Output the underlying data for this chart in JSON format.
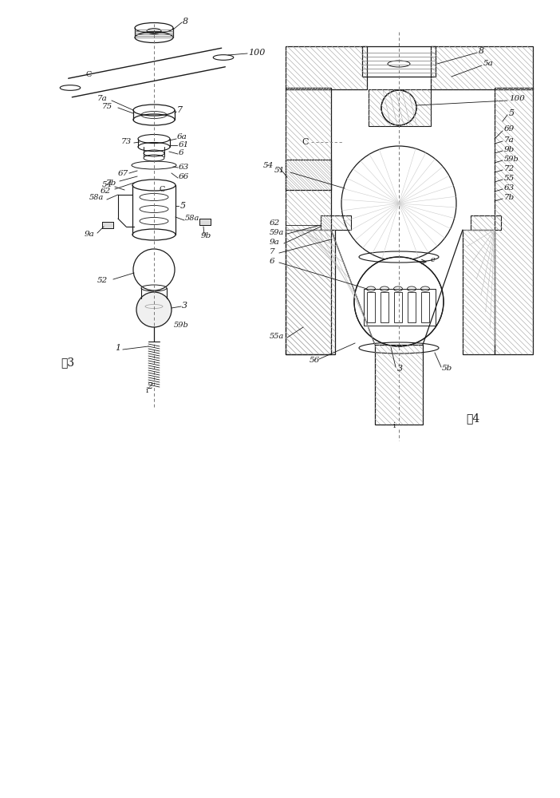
{
  "bg_color": "#ffffff",
  "line_color": "#1a1a1a",
  "fig3_label": "图3",
  "fig4_label": "图4",
  "labels": {
    "8": "8",
    "C": "C",
    "100": "100",
    "75": "75",
    "7a": "7a",
    "7": "7",
    "6a": "6a",
    "73": "73",
    "61": "61",
    "6": "6",
    "7b": "7b",
    "67": "67",
    "62": "62",
    "63": "63",
    "66": "66",
    "54": "54",
    "58a": "58a",
    "5": "5",
    "9a": "9a",
    "9b": "9b",
    "52": "52",
    "3": "3",
    "59b": "59b",
    "1": "1",
    "2": "2",
    "5a": "5a",
    "51": "51",
    "59a": "59a",
    "55a": "55a",
    "56": "56",
    "5b": "5b",
    "e": "e",
    "55": "55",
    "72": "72",
    "69": "69",
    "96": "9b",
    "596": "59b",
    "7a_r": "7a",
    "7b_r": "7b",
    "63_r": "63"
  }
}
